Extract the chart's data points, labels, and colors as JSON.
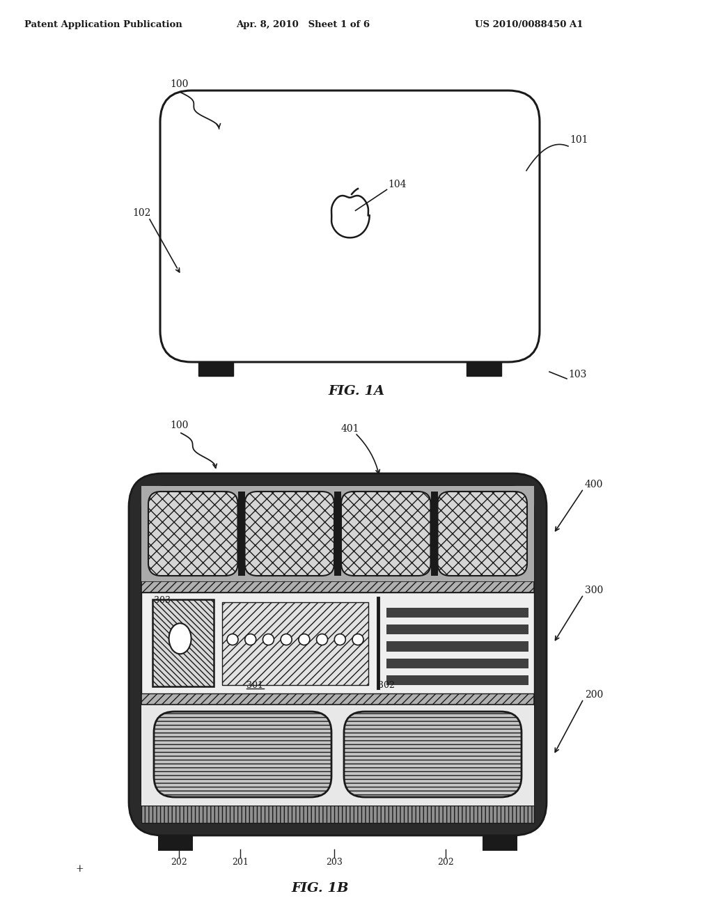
{
  "bg_color": "#ffffff",
  "header_left": "Patent Application Publication",
  "header_mid": "Apr. 8, 2010   Sheet 1 of 6",
  "header_right": "US 2010/0088450 A1",
  "fig1a_label": "FIG. 1A",
  "fig1b_label": "FIG. 1B",
  "lc": "#1a1a1a",
  "dark_fill": "#1a1a1a",
  "outer_dark": "#2d2d2d"
}
